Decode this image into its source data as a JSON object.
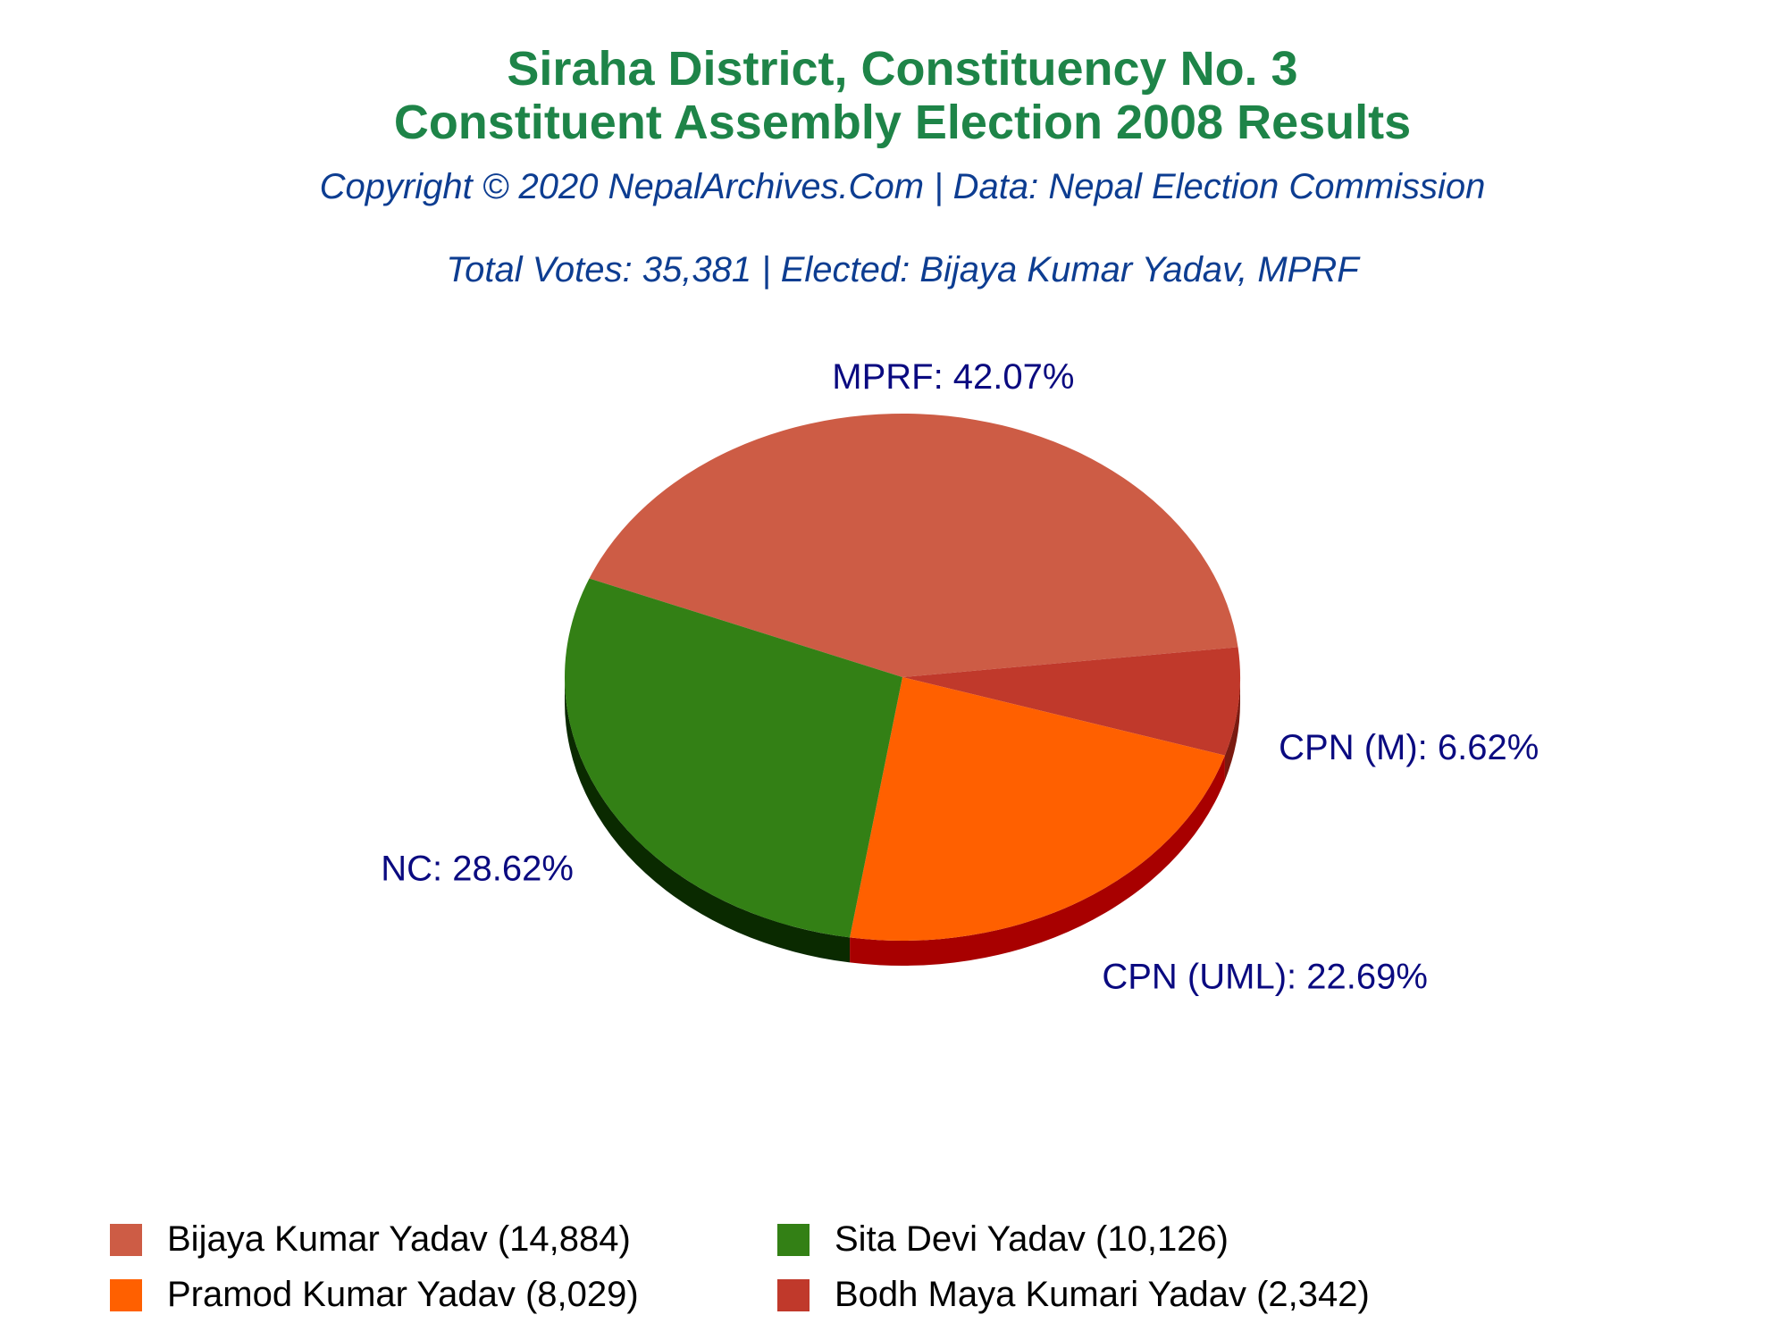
{
  "chart_data": {
    "type": "pie",
    "title_line1": "Siraha District, Constituency No. 3",
    "title_line2": "Constituent Assembly Election 2008 Results",
    "copyright": "Copyright © 2020 NepalArchives.Com | Data: Nepal Election Commission",
    "summary": "Total Votes: 35,381 | Elected: Bijaya Kumar Yadav, MPRF",
    "slices": [
      {
        "party": "MPRF",
        "percent": 42.07,
        "label": "MPRF: 42.07%",
        "candidate": "Bijaya Kumar Yadav",
        "votes": 14884,
        "legend": "Bijaya Kumar Yadav (14,884)",
        "color": "#cd5c45",
        "side_color": "#8a2e1f"
      },
      {
        "party": "CPN (M)",
        "percent": 6.62,
        "label": "CPN (M): 6.62%",
        "candidate": "Bodh Maya Kumari Yadav",
        "votes": 2342,
        "legend": "Bodh Maya Kumari Yadav (2,342)",
        "color": "#c0392b",
        "side_color": "#7a1a10"
      },
      {
        "party": "CPN (UML)",
        "percent": 22.69,
        "label": "CPN (UML): 22.69%",
        "candidate": "Pramod Kumar Yadav",
        "votes": 8029,
        "legend": "Pramod Kumar Yadav (8,029)",
        "color": "#ff6000",
        "side_color": "#a80000"
      },
      {
        "party": "NC",
        "percent": 28.62,
        "label": "NC: 28.62%",
        "candidate": "Sita Devi Yadav",
        "votes": 10126,
        "legend": "Sita Devi Yadav (10,126)",
        "color": "#338015",
        "side_color": "#0a2a00"
      }
    ],
    "legend_order": [
      0,
      3,
      2,
      1
    ],
    "legend_placement": "bottom"
  }
}
